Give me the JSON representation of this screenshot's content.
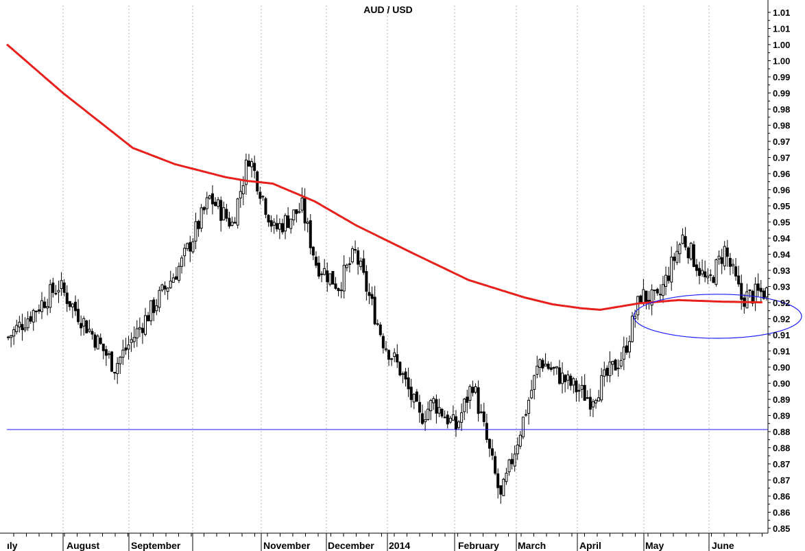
{
  "chart_data": {
    "type": "candlestick",
    "title": "AUD / USD",
    "ylim": [
      0.8515,
      1.0145
    ],
    "y_axis_position": "right",
    "y_tick_labels": [
      "1.01",
      "1.01",
      "1.00",
      "1.00",
      "0.99",
      "0.99",
      "0.98",
      "0.98",
      "0.97",
      "0.97",
      "0.96",
      "0.96",
      "0.95",
      "0.95",
      "0.94",
      "0.94",
      "0.93",
      "0.93",
      "0.92",
      "0.92",
      "0.91",
      "0.91",
      "0.90",
      "0.90",
      "0.89",
      "0.89",
      "0.88",
      "0.88",
      "0.87",
      "0.87",
      "0.86",
      "0.86",
      "0.85"
    ],
    "x_tick_labels": [
      "ıly",
      "August",
      "September",
      "November",
      "December",
      "2014",
      "February",
      "March",
      "April",
      "May",
      "June"
    ],
    "grid": "vertical dotted at month boundaries",
    "legend": "none",
    "price_path": {
      "description": "approximate AUD/USD daily closes, mid-2013 to early June 2014",
      "sessions": [
        0,
        18,
        38,
        62,
        72,
        80,
        86,
        95,
        105,
        110,
        118,
        124,
        134,
        140,
        147,
        152,
        160,
        166,
        176,
        190,
        200,
        208,
        220,
        226,
        232,
        241,
        250,
        256,
        262,
        270
      ],
      "closes": [
        0.912,
        0.928,
        0.903,
        0.935,
        0.955,
        0.947,
        0.968,
        0.945,
        0.952,
        0.935,
        0.928,
        0.938,
        0.911,
        0.902,
        0.887,
        0.892,
        0.884,
        0.898,
        0.862,
        0.905,
        0.898,
        0.893,
        0.907,
        0.925,
        0.923,
        0.943,
        0.928,
        0.939,
        0.924,
        0.926
      ]
    },
    "moving_average_200": {
      "color": "#e8201c",
      "sessions": [
        0,
        20,
        45,
        60,
        78,
        86,
        95,
        110,
        125,
        145,
        165,
        185,
        195,
        205,
        212,
        219,
        226,
        240,
        256,
        270
      ],
      "values": [
        1.0025,
        0.9875,
        0.9705,
        0.9655,
        0.9615,
        0.9603,
        0.9595,
        0.954,
        0.9465,
        0.938,
        0.9297,
        0.9243,
        0.9222,
        0.921,
        0.9205,
        0.9215,
        0.9225,
        0.9235,
        0.923,
        0.9228
      ]
    },
    "support_line": {
      "value": 0.8835,
      "color": "#1a1aff"
    },
    "highlight_ellipse": {
      "color": "#1a1aff",
      "center_session": 254,
      "center_value": 0.9185,
      "session_radius": 30,
      "value_radius": 0.0068
    }
  }
}
